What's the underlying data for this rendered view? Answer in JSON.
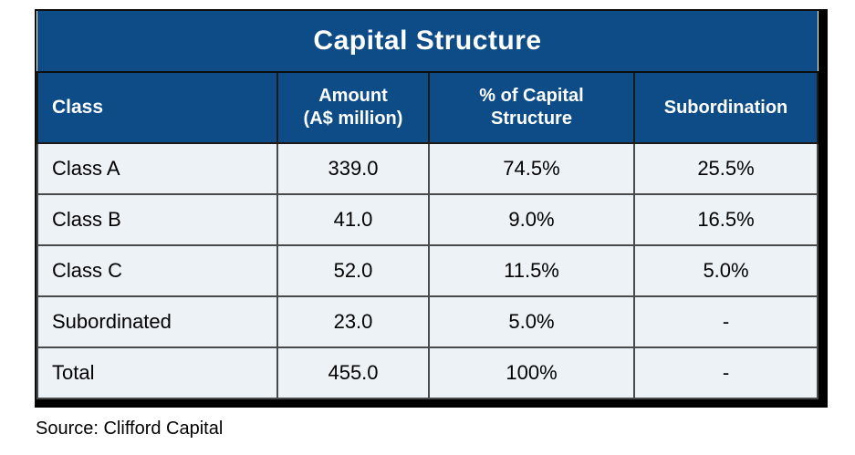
{
  "table": {
    "title": "Capital Structure",
    "columns": [
      "Class",
      "Amount\n(A$ million)",
      "% of Capital\nStructure",
      "Subordination"
    ],
    "rows": [
      {
        "cells": [
          "Class A",
          "339.0",
          "74.5%",
          "25.5%"
        ]
      },
      {
        "cells": [
          "Class B",
          "41.0",
          "9.0%",
          "16.5%"
        ]
      },
      {
        "cells": [
          "Class C",
          "52.0",
          "11.5%",
          "5.0%"
        ]
      },
      {
        "cells": [
          "Subordinated",
          "23.0",
          "5.0%",
          "-"
        ]
      },
      {
        "cells": [
          "Total",
          "455.0",
          "100%",
          "-"
        ]
      }
    ]
  },
  "source": "Source: Clifford Capital",
  "colors": {
    "header_blue": "#0d4c87",
    "row_background": "#edf2f7",
    "grid_line": "#4a4a4a",
    "outer_border": "#000000",
    "header_text": "#ffffff",
    "body_text": "#000000"
  },
  "chart_data": {
    "type": "table",
    "title": "Capital Structure",
    "columns": [
      "Class",
      "Amount (A$ million)",
      "% of Capital Structure",
      "Subordination"
    ],
    "rows": [
      [
        "Class A",
        339.0,
        "74.5%",
        "25.5%"
      ],
      [
        "Class B",
        41.0,
        "9.0%",
        "16.5%"
      ],
      [
        "Class C",
        52.0,
        "11.5%",
        "5.0%"
      ],
      [
        "Subordinated",
        23.0,
        "5.0%",
        "-"
      ],
      [
        "Total",
        455.0,
        "100%",
        "-"
      ]
    ],
    "source": "Source: Clifford Capital"
  }
}
